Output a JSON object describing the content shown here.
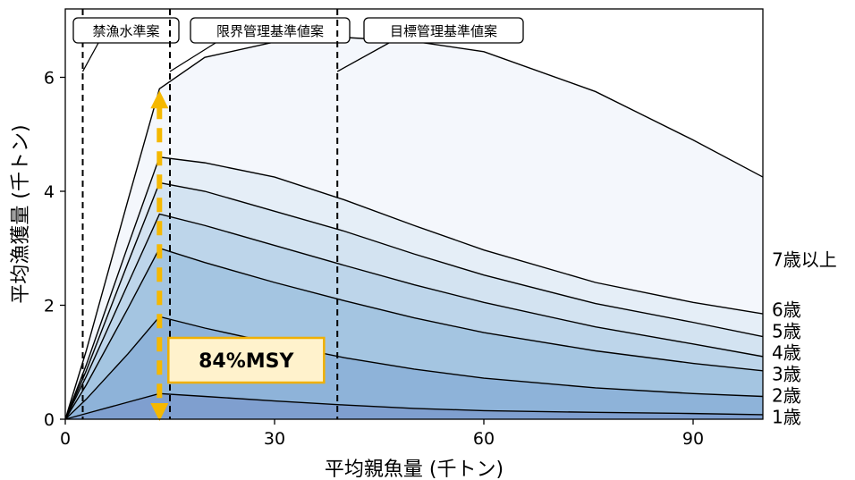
{
  "chart_data": {
    "type": "area",
    "stacked": true,
    "xlabel": "平均親魚量 (千トン)",
    "ylabel": "平均漁獲量 (千トン)",
    "xlim": [
      0,
      100
    ],
    "ylim": [
      0,
      7.2
    ],
    "x_ticks": [
      0,
      30,
      60,
      90
    ],
    "y_ticks": [
      0,
      2,
      4,
      6
    ],
    "grid": false,
    "x": [
      0,
      3,
      9,
      13.5,
      20,
      30,
      40,
      50,
      60,
      76,
      90,
      100
    ],
    "series": [
      {
        "name": "1歳",
        "color": "#7f9fcf",
        "cumulative": [
          0,
          0.1,
          0.3,
          0.45,
          0.4,
          0.32,
          0.25,
          0.19,
          0.15,
          0.12,
          0.1,
          0.08
        ]
      },
      {
        "name": "2歳",
        "color": "#8eb3d9",
        "cumulative": [
          0,
          0.35,
          1.15,
          1.8,
          1.6,
          1.33,
          1.08,
          0.88,
          0.72,
          0.55,
          0.45,
          0.4
        ]
      },
      {
        "name": "3歳",
        "color": "#a4c5e1",
        "cumulative": [
          0,
          0.6,
          1.95,
          3.0,
          2.75,
          2.4,
          2.08,
          1.78,
          1.52,
          1.2,
          0.98,
          0.85
        ]
      },
      {
        "name": "4歳",
        "color": "#bdd5ea",
        "cumulative": [
          0,
          0.75,
          2.38,
          3.6,
          3.4,
          3.05,
          2.7,
          2.36,
          2.05,
          1.62,
          1.32,
          1.1
        ]
      },
      {
        "name": "5歳",
        "color": "#d3e3f1",
        "cumulative": [
          0,
          0.85,
          2.75,
          4.15,
          4.0,
          3.65,
          3.3,
          2.9,
          2.53,
          2.03,
          1.7,
          1.45
        ]
      },
      {
        "name": "6歳",
        "color": "#e5eef7",
        "cumulative": [
          0,
          0.95,
          3.05,
          4.6,
          4.5,
          4.25,
          3.85,
          3.4,
          2.97,
          2.4,
          2.05,
          1.85
        ]
      },
      {
        "name": "7歳以上",
        "color": "#f4f7fc",
        "cumulative": [
          0,
          1.2,
          3.85,
          5.8,
          6.35,
          6.62,
          6.7,
          6.63,
          6.45,
          5.75,
          4.9,
          4.25
        ]
      }
    ],
    "reference_lines": [
      {
        "label": "禁漁水準案",
        "x": 2.5
      },
      {
        "label": "限界管理基準値案",
        "x": 15.0
      },
      {
        "label": "目標管理基準値案",
        "x": 39.0
      }
    ],
    "annotations": [
      {
        "text": "84%MSY",
        "x": 13.5,
        "y_from": 0,
        "y_to": 5.8,
        "arrow_color": "#f5b800",
        "box_fill": "#fff2cc",
        "box_border": "#f0b000"
      }
    ]
  }
}
